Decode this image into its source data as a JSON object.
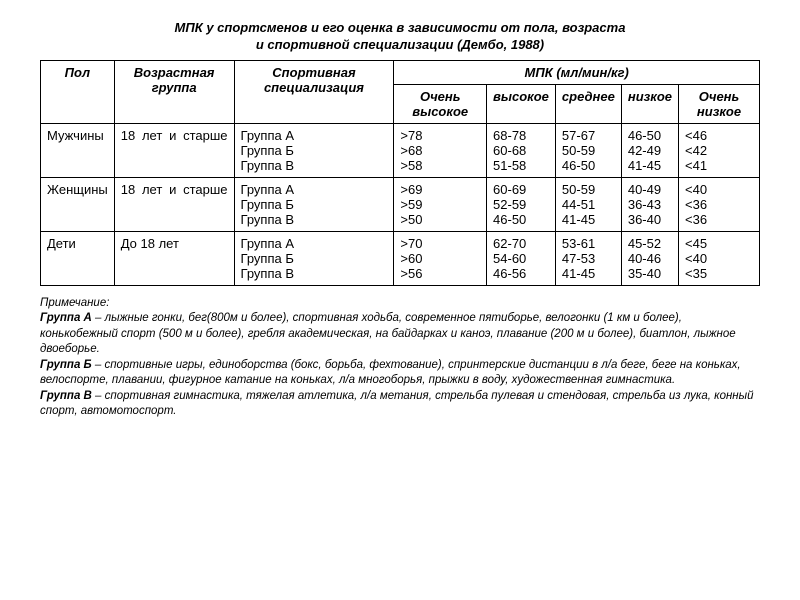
{
  "title_line1": "МПК у спортсменов и его оценка в зависимости от пола, возраста",
  "title_line2": "и спортивной специализации (Дембо, 1988)",
  "headers": {
    "sex": "Пол",
    "age_group": "Возрастная группа",
    "sport_spec": "Спортивная специализация",
    "mpk_span": "МПК (мл/мин/кг)",
    "very_high": "Очень высокое",
    "high": "высокое",
    "medium": "среднее",
    "low": "низкое",
    "very_low": "Очень низкое"
  },
  "rows": [
    {
      "sex": "Мужчины",
      "age": "18 лет и старше",
      "spec": "Группа А\nГруппа Б\nГруппа В",
      "very_high": ">78\n>68\n>58",
      "high": "68-78\n60-68\n51-58",
      "medium": "57-67\n50-59\n46-50",
      "low": "46-50\n42-49\n41-45",
      "very_low": "<46\n<42\n<41"
    },
    {
      "sex": "Женщины",
      "age": "18 лет и старше",
      "spec": "Группа А\nГруппа Б\nГруппа В",
      "very_high": ">69\n>59\n>50",
      "high": "60-69\n52-59\n46-50",
      "medium": "50-59\n44-51\n41-45",
      "low": "40-49\n36-43\n36-40",
      "very_low": "<40\n<36\n<36"
    },
    {
      "sex": "Дети",
      "age": "До 18 лет",
      "spec": "Группа А\nГруппа Б\nГруппа В",
      "very_high": ">70\n>60\n>56",
      "high": "62-70\n54-60\n46-56",
      "medium": "53-61\n47-53\n41-45",
      "low": "45-52\n40-46\n35-40",
      "very_low": "<45\n<40\n<35"
    }
  ],
  "notes": {
    "heading": "Примечание:",
    "a_label": "Группа А",
    "a_text": " – лыжные гонки, бег(800м и более), спортивная ходьба, современное пятиборье, велогонки (1 км и более), конькобежный спорт (500 м и более), гребля академическая, на байдарках и каноэ, плавание (200 м и более), биатлон, лыжное двоеборье.",
    "b_label": "Группа Б",
    "b_text": " – спортивные игры, единоборства (бокс, борьба, фехтование), спринтерские дистанции в л/а беге, беге на коньках, велоспорте, плавании, фигурное катание на коньках, л/а многоборья, прыжки в воду, художественная гимнастика.",
    "v_label": "Группа В",
    "v_text": " – спортивная гимнастика, тяжелая атлетика, л/а метания, стрельба пулевая и стендовая, стрельба из лука, конный спорт, автомотоспорт."
  },
  "styling": {
    "background_color": "#ffffff",
    "text_color": "#000000",
    "border_color": "#000000",
    "font_family": "Arial",
    "title_fontsize": 13,
    "table_fontsize": 13,
    "notes_fontsize": 11.5
  }
}
